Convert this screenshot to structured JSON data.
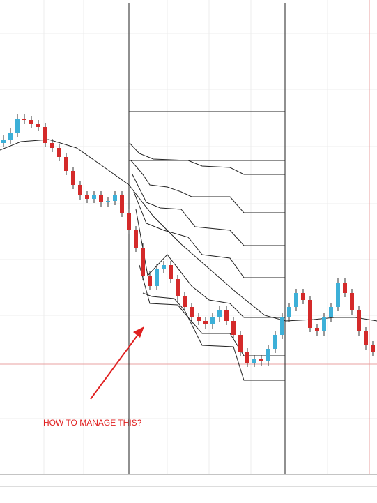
{
  "chart_data": {
    "type": "candlestick",
    "annotation": "HOW TO MANAGE THIS?",
    "ylim": [
      20,
      700
    ],
    "up_color": "#3db0d8",
    "down_color": "#d42a2a",
    "open": [
      495,
      500,
      510,
      530,
      528,
      522,
      518,
      495,
      488,
      475,
      455,
      435,
      420,
      415,
      420,
      410,
      412,
      420,
      395,
      370,
      345,
      305,
      290,
      315,
      320,
      300,
      275,
      260,
      245,
      240,
      235,
      245,
      255,
      240,
      220,
      195,
      180,
      185,
      182,
      200,
      220,
      245,
      260,
      280,
      270,
      230,
      225,
      245,
      260,
      295,
      280,
      255,
      225,
      205
    ],
    "high": [
      506,
      516,
      536,
      536,
      534,
      528,
      524,
      501,
      494,
      481,
      461,
      441,
      426,
      426,
      426,
      418,
      426,
      426,
      401,
      376,
      351,
      311,
      321,
      326,
      326,
      306,
      281,
      266,
      251,
      246,
      251,
      261,
      261,
      246,
      226,
      201,
      191,
      191,
      206,
      226,
      251,
      266,
      286,
      286,
      276,
      236,
      251,
      266,
      301,
      301,
      286,
      261,
      231,
      211
    ],
    "low": [
      489,
      494,
      504,
      522,
      516,
      512,
      489,
      482,
      469,
      449,
      429,
      414,
      409,
      409,
      404,
      404,
      406,
      389,
      364,
      339,
      299,
      284,
      284,
      309,
      294,
      269,
      254,
      239,
      234,
      229,
      229,
      239,
      234,
      214,
      189,
      174,
      174,
      176,
      176,
      194,
      214,
      239,
      254,
      264,
      224,
      219,
      219,
      239,
      254,
      274,
      249,
      219,
      199,
      189
    ],
    "close": [
      500,
      510,
      530,
      528,
      522,
      518,
      495,
      488,
      475,
      455,
      435,
      420,
      415,
      420,
      410,
      412,
      420,
      395,
      370,
      345,
      305,
      290,
      315,
      320,
      300,
      275,
      260,
      245,
      240,
      235,
      245,
      255,
      240,
      220,
      195,
      180,
      185,
      182,
      200,
      220,
      245,
      260,
      280,
      270,
      230,
      225,
      245,
      260,
      295,
      280,
      255,
      225,
      205,
      195
    ]
  }
}
